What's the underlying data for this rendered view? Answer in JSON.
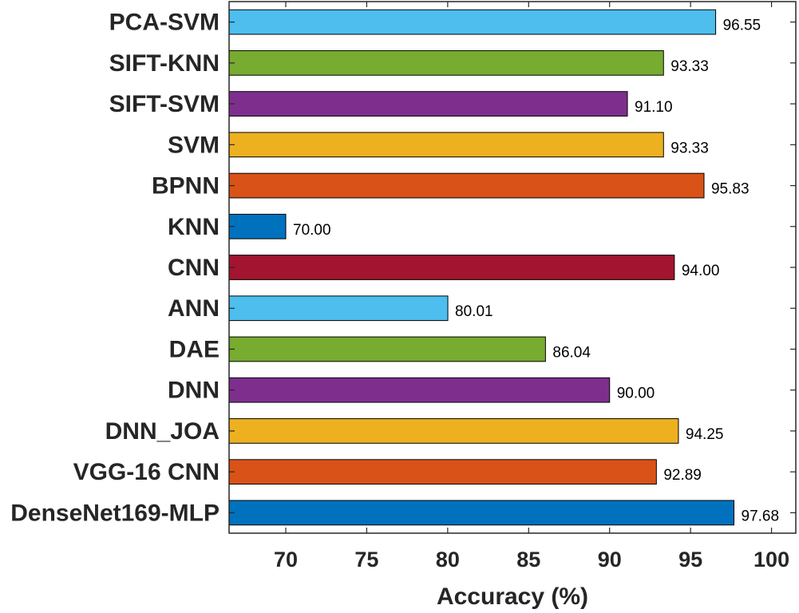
{
  "chart_data": {
    "type": "bar",
    "orientation": "horizontal",
    "title": "",
    "xlabel": "Accuracy (%)",
    "ylabel": "",
    "xlim": [
      66.5,
      101.5
    ],
    "xticks": [
      70,
      75,
      80,
      85,
      90,
      95,
      100
    ],
    "grid": false,
    "categories": [
      "PCA-SVM",
      "SIFT-KNN",
      "SIFT-SVM",
      "SVM",
      "BPNN",
      "KNN",
      "CNN",
      "ANN",
      "DAE",
      "DNN",
      "DNN_JOA",
      "VGG-16 CNN",
      "DenseNet169-MLP"
    ],
    "values": [
      96.55,
      93.33,
      91.1,
      93.33,
      95.83,
      70.0,
      94.0,
      80.01,
      86.04,
      90.0,
      94.25,
      92.89,
      97.68
    ],
    "value_labels": [
      "96.55",
      "93.33",
      "91.10",
      "93.33",
      "95.83",
      "70.00",
      "94.00",
      "80.01",
      "86.04",
      "90.00",
      "94.25",
      "92.89",
      "97.68"
    ],
    "colors": [
      "#4DBEEE",
      "#77AC30",
      "#7E2F8E",
      "#EDB120",
      "#D95319",
      "#0072BD",
      "#A2142F",
      "#4DBEEE",
      "#77AC30",
      "#7E2F8E",
      "#EDB120",
      "#D95319",
      "#0072BD"
    ]
  }
}
